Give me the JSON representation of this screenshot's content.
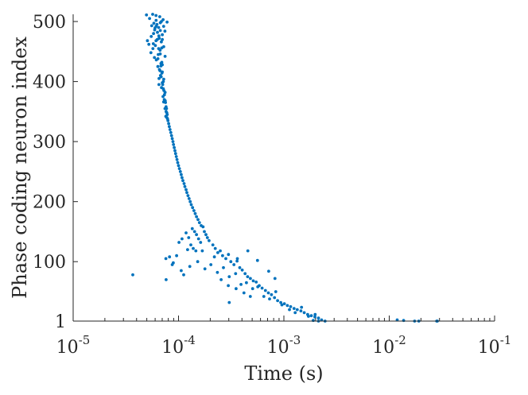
{
  "chart_data": {
    "type": "scatter",
    "title": "",
    "xlabel": "Time (s)",
    "ylabel": "Phase coding neuron index",
    "x_scale": "log",
    "xlim": [
      1e-05,
      0.1
    ],
    "ylim": [
      1,
      512
    ],
    "x_ticks": [
      {
        "base": "10",
        "exp": "-5",
        "value": 1e-05
      },
      {
        "base": "10",
        "exp": "-4",
        "value": 0.0001
      },
      {
        "base": "10",
        "exp": "-3",
        "value": 0.001
      },
      {
        "base": "10",
        "exp": "-2",
        "value": 0.01
      },
      {
        "base": "10",
        "exp": "-1",
        "value": 0.1
      }
    ],
    "y_ticks": [
      {
        "label": "1",
        "value": 1
      },
      {
        "label": "100",
        "value": 100
      },
      {
        "label": "200",
        "value": 200
      },
      {
        "label": "300",
        "value": 300
      },
      {
        "label": "400",
        "value": 400
      },
      {
        "label": "500",
        "value": 500
      }
    ],
    "grid": false,
    "marker_color": "#0072BD",
    "axis_color": "#262626",
    "series": [
      {
        "points": [
          [
            4.96e-05,
            511
          ],
          [
            5.31e-05,
            505
          ],
          [
            5.68e-05,
            512
          ],
          [
            6.12e-05,
            510
          ],
          [
            6.63e-05,
            508
          ],
          [
            7.14e-05,
            503
          ],
          [
            7.79e-05,
            499
          ],
          [
            5.07e-05,
            468
          ],
          [
            5.23e-05,
            462
          ],
          [
            5.51e-05,
            475
          ],
          [
            5.79e-05,
            480
          ],
          [
            5.98e-05,
            489
          ],
          [
            6.24e-05,
            495
          ],
          [
            6.48e-05,
            490
          ],
          [
            6.72e-05,
            485
          ],
          [
            7.01e-05,
            478
          ],
          [
            5.47e-05,
            448
          ],
          [
            5.71e-05,
            455
          ],
          [
            6.03e-05,
            460
          ],
          [
            6.29e-05,
            470
          ],
          [
            6.55e-05,
            472
          ],
          [
            6.87e-05,
            466
          ],
          [
            5.91e-05,
            440
          ],
          [
            6.16e-05,
            436
          ],
          [
            6.42e-05,
            445
          ],
          [
            6.68e-05,
            452
          ],
          [
            6.93e-05,
            456
          ],
          [
            6.37e-05,
            425
          ],
          [
            6.59e-05,
            420
          ],
          [
            6.81e-05,
            430
          ],
          [
            7.02e-05,
            428
          ],
          [
            6.53e-05,
            405
          ],
          [
            6.74e-05,
            410
          ],
          [
            6.96e-05,
            414
          ],
          [
            7.18e-05,
            400
          ],
          [
            6.89e-05,
            390
          ],
          [
            7.08e-05,
            395
          ],
          [
            7.26e-05,
            385
          ],
          [
            7.12e-05,
            375
          ],
          [
            7.33e-05,
            370
          ],
          [
            7.52e-05,
            365
          ],
          [
            7.44e-05,
            355
          ],
          [
            7.63e-05,
            350
          ],
          [
            7.81e-05,
            345
          ],
          [
            7.75e-05,
            340
          ],
          [
            7.93e-05,
            335
          ],
          [
            8.06e-05,
            330
          ],
          [
            8.18e-05,
            325
          ],
          [
            8.31e-05,
            320
          ],
          [
            8.45e-05,
            315
          ],
          [
            8.58e-05,
            310
          ],
          [
            8.72e-05,
            305
          ],
          [
            8.85e-05,
            300
          ],
          [
            8.97e-05,
            295
          ],
          [
            9.11e-05,
            290
          ],
          [
            9.25e-05,
            285
          ],
          [
            9.38e-05,
            280
          ],
          [
            9.52e-05,
            275
          ],
          [
            9.67e-05,
            270
          ],
          [
            9.83e-05,
            265
          ],
          [
            0.0001,
            260
          ],
          [
            0.000102,
            255
          ],
          [
            0.000104,
            250
          ],
          [
            0.000106,
            245
          ],
          [
            0.000108,
            240
          ],
          [
            0.00011,
            235
          ],
          [
            0.000113,
            230
          ],
          [
            0.000115,
            225
          ],
          [
            0.000118,
            220
          ],
          [
            0.00012,
            215
          ],
          [
            0.000123,
            210
          ],
          [
            0.000126,
            205
          ],
          [
            0.000129,
            200
          ],
          [
            0.000132,
            195
          ],
          [
            0.000136,
            190
          ],
          [
            0.00014,
            185
          ],
          [
            0.000144,
            180
          ],
          [
            0.000148,
            175
          ],
          [
            0.000153,
            170
          ],
          [
            0.000158,
            165
          ],
          [
            0.000164,
            160
          ],
          [
            0.000171,
            158
          ],
          [
            0.000176,
            150
          ],
          [
            0.000182,
            145
          ],
          [
            0.000188,
            140
          ],
          [
            0.000195,
            135
          ],
          [
            0.000135,
            155
          ],
          [
            0.000142,
            150
          ],
          [
            0.000148,
            145
          ],
          [
            0.000155,
            138
          ],
          [
            0.000162,
            132
          ],
          [
            0.000125,
            140
          ],
          [
            0.000118,
            148
          ],
          [
            0.000131,
            128
          ],
          [
            0.000138,
            122
          ],
          [
            0.000146,
            118
          ],
          [
            0.000212,
            128
          ],
          [
            0.000223,
            122
          ],
          [
            0.000236,
            115
          ],
          [
            0.000249,
            118
          ],
          [
            0.000262,
            110
          ],
          [
            0.000281,
            105
          ],
          [
            0.000298,
            112
          ],
          [
            0.000314,
            100
          ],
          [
            0.000336,
            95
          ],
          [
            0.000359,
            101
          ],
          [
            0.000381,
            90
          ],
          [
            0.000402,
            86
          ],
          [
            0.000428,
            80
          ],
          [
            0.000453,
            75
          ],
          [
            0.000481,
            72
          ],
          [
            0.000512,
            68
          ],
          [
            0.000546,
            66
          ],
          [
            0.000583,
            60
          ],
          [
            0.000621,
            56
          ],
          [
            0.000668,
            52
          ],
          [
            0.000712,
            48
          ],
          [
            0.000763,
            45
          ],
          [
            0.000815,
            40
          ],
          [
            0.000872,
            35
          ],
          [
            0.000935,
            32
          ],
          [
            0.00101,
            30
          ],
          [
            0.00108,
            27
          ],
          [
            0.00116,
            25
          ],
          [
            0.00125,
            22
          ],
          [
            0.00134,
            20
          ],
          [
            0.00145,
            18
          ],
          [
            0.00156,
            15
          ],
          [
            0.00168,
            12
          ],
          [
            0.00182,
            10
          ],
          [
            0.00197,
            8
          ],
          [
            0.00213,
            6
          ],
          [
            0.00228,
            3
          ],
          [
            0.00246,
            1
          ],
          [
            7.58e-05,
            105
          ],
          [
            8.21e-05,
            108
          ],
          [
            9.59e-05,
            110
          ],
          [
            8.72e-05,
            95
          ],
          [
            7.63e-05,
            70
          ],
          [
            3.68e-05,
            78
          ],
          [
            0.000106,
            85
          ],
          [
            0.000112,
            78
          ],
          [
            0.000128,
            92
          ],
          [
            0.000152,
            100
          ],
          [
            0.000178,
            88
          ],
          [
            0.000203,
            95
          ],
          [
            0.000234,
            82
          ],
          [
            0.000267,
            90
          ],
          [
            0.000303,
            75
          ],
          [
            0.000348,
            80
          ],
          [
            0.000392,
            62
          ],
          [
            0.000441,
            65
          ],
          [
            0.000505,
            55
          ],
          [
            0.000566,
            58
          ],
          [
            0.000645,
            42
          ],
          [
            0.000731,
            38
          ],
          [
            0.000837,
            50
          ],
          [
            0.000958,
            28
          ],
          [
            0.00113,
            20
          ],
          [
            0.00128,
            15
          ],
          [
            0.00147,
            24
          ],
          [
            0.00171,
            9
          ],
          [
            0.00198,
            12
          ],
          [
            8.92e-05,
            98
          ],
          [
            0.000101,
            132
          ],
          [
            0.000108,
            138
          ],
          [
            0.000122,
            120
          ],
          [
            0.000297,
            60
          ],
          [
            0.000352,
            55
          ],
          [
            0.000418,
            48
          ],
          [
            0.00048,
            42
          ],
          [
            0.000303,
            32
          ],
          [
            0.000362,
            105
          ],
          [
            0.000455,
            118
          ],
          [
            0.000562,
            102
          ],
          [
            0.000717,
            84
          ],
          [
            0.000823,
            72
          ],
          [
            0.000254,
            70
          ],
          [
            0.000219,
            108
          ],
          [
            0.000168,
            118
          ],
          [
            0.0119,
            3
          ],
          [
            0.0137,
            2
          ],
          [
            0.0174,
            1
          ],
          [
            0.0191,
            1
          ],
          [
            0.0282,
            1
          ],
          [
            0.0286,
            1
          ],
          [
            0.00213,
            1
          ],
          [
            0.0019,
            2
          ],
          [
            6.87e-05,
            500
          ],
          [
            6.72e-05,
            498
          ],
          [
            6.12e-05,
            492
          ],
          [
            5.94e-05,
            486
          ],
          [
            6.31e-05,
            482
          ],
          [
            6.51e-05,
            476
          ],
          [
            6.12e-05,
            468
          ],
          [
            5.76e-05,
            463
          ],
          [
            6.48e-05,
            455
          ],
          [
            6.71e-05,
            446
          ],
          [
            6.38e-05,
            438
          ],
          [
            6.94e-05,
            432
          ],
          [
            6.67e-05,
            418
          ],
          [
            6.85e-05,
            408
          ],
          [
            7.02e-05,
            398
          ],
          [
            7.18e-05,
            388
          ],
          [
            7.35e-05,
            378
          ],
          [
            7.48e-05,
            368
          ],
          [
            7.61e-05,
            358
          ],
          [
            7.74e-05,
            348
          ],
          [
            7.87e-05,
            338
          ],
          [
            6.13e-05,
            502
          ],
          [
            5.84e-05,
            497
          ],
          [
            5.57e-05,
            493
          ],
          [
            7.22e-05,
            492
          ],
          [
            7.43e-05,
            484
          ],
          [
            7.02e-05,
            470
          ],
          [
            7.24e-05,
            458
          ],
          [
            7.45e-05,
            442
          ],
          [
            6.81e-05,
            426
          ],
          [
            7.02e-05,
            416
          ],
          [
            7.24e-05,
            404
          ],
          [
            6.52e-05,
            395
          ],
          [
            7.46e-05,
            382
          ],
          [
            7.23e-05,
            366
          ],
          [
            7.69e-05,
            355
          ],
          [
            7.57e-05,
            342
          ]
        ]
      }
    ]
  }
}
